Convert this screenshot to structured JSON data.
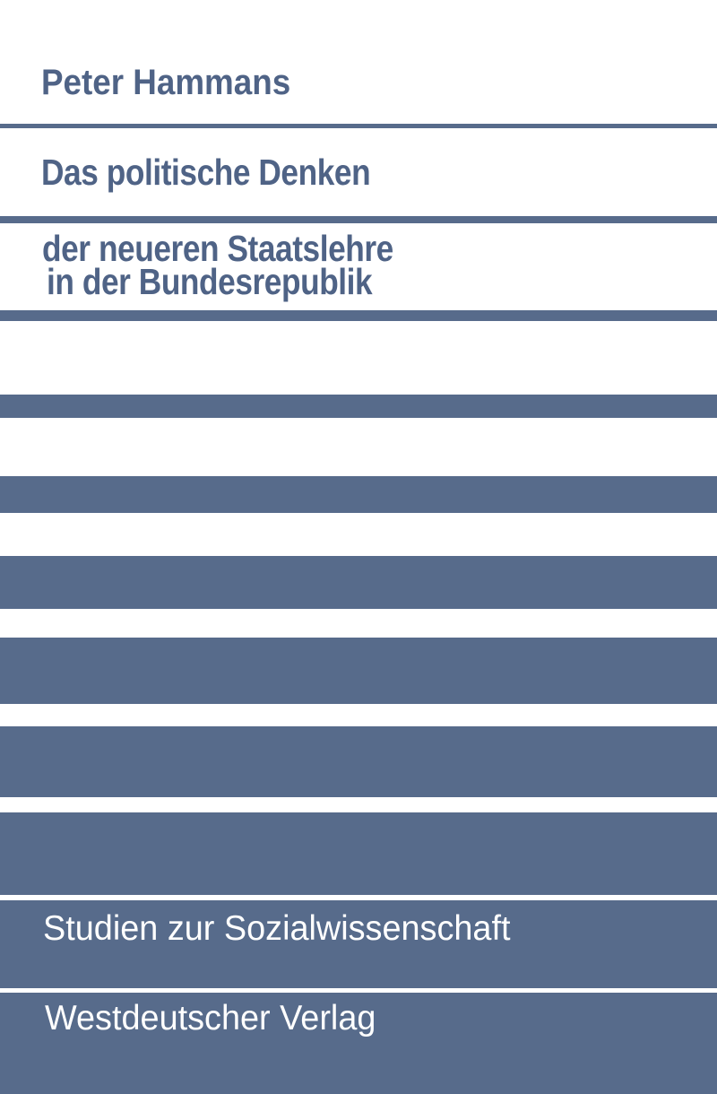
{
  "cover": {
    "author": "Peter Hammans",
    "title_line_1": "Das politische Denken",
    "title_line_2": "der neueren Staatslehre",
    "title_line_3": "in der Bundesrepublik",
    "series": "Studien zur Sozialwissenschaft",
    "publisher": "Westdeutscher Verlag"
  },
  "colors": {
    "band": "#576b8b",
    "text_dark": "#4f6386",
    "background": "#ffffff"
  }
}
